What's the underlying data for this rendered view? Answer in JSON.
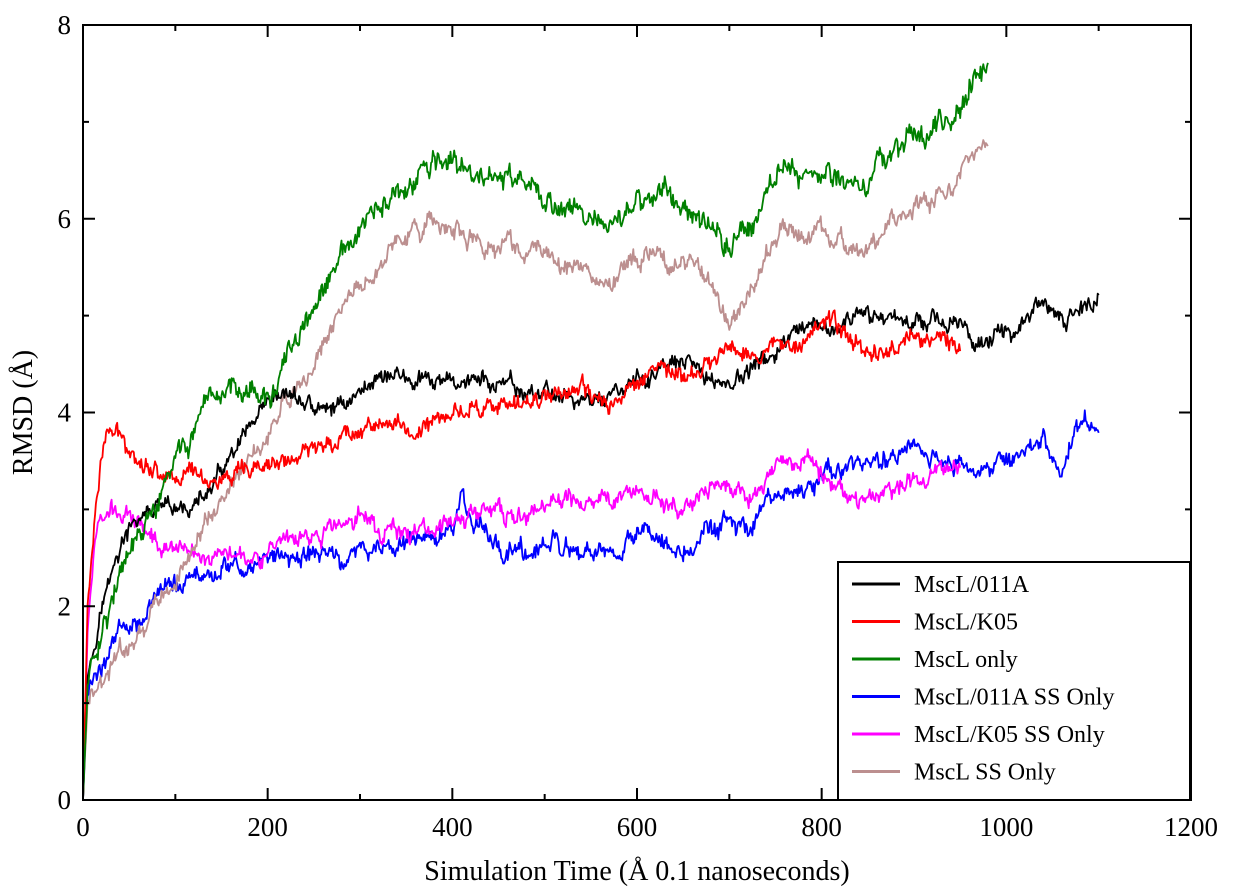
{
  "chart_data": {
    "type": "line",
    "title": "",
    "xlabel": "Simulation Time (Å 0.1 nanoseconds)",
    "ylabel": "RMSD (Å)",
    "xlim": [
      0,
      1200
    ],
    "ylim": [
      0,
      8
    ],
    "x_ticks": [
      0,
      200,
      400,
      600,
      800,
      1000,
      1200
    ],
    "y_ticks": [
      0,
      2,
      4,
      6,
      8
    ],
    "x_tick_labels": [
      "0",
      "200",
      "400",
      "600",
      "800",
      "1000",
      "1200"
    ],
    "y_tick_labels": [
      "0",
      "2",
      "4",
      "6",
      "8"
    ],
    "grid": false,
    "legend_position": "bottom-right",
    "series": [
      {
        "name": "MscL/011A",
        "color": "#000000",
        "noise": 0.11,
        "points": [
          [
            0,
            0
          ],
          [
            5,
            1.3
          ],
          [
            20,
            2.0
          ],
          [
            40,
            2.6
          ],
          [
            60,
            2.9
          ],
          [
            80,
            3.0
          ],
          [
            100,
            2.95
          ],
          [
            130,
            3.1
          ],
          [
            160,
            3.5
          ],
          [
            180,
            3.8
          ],
          [
            200,
            4.0
          ],
          [
            220,
            4.2
          ],
          [
            240,
            4.1
          ],
          [
            260,
            4.0
          ],
          [
            280,
            4.1
          ],
          [
            300,
            4.2
          ],
          [
            320,
            4.4
          ],
          [
            340,
            4.4
          ],
          [
            360,
            4.3
          ],
          [
            380,
            4.3
          ],
          [
            400,
            4.3
          ],
          [
            420,
            4.35
          ],
          [
            440,
            4.3
          ],
          [
            460,
            4.25
          ],
          [
            480,
            4.2
          ],
          [
            500,
            4.2
          ],
          [
            520,
            4.2
          ],
          [
            540,
            4.1
          ],
          [
            560,
            4.15
          ],
          [
            580,
            4.2
          ],
          [
            600,
            4.3
          ],
          [
            620,
            4.4
          ],
          [
            640,
            4.5
          ],
          [
            660,
            4.45
          ],
          [
            680,
            4.35
          ],
          [
            700,
            4.3
          ],
          [
            720,
            4.4
          ],
          [
            740,
            4.55
          ],
          [
            760,
            4.7
          ],
          [
            780,
            4.8
          ],
          [
            800,
            4.85
          ],
          [
            820,
            4.9
          ],
          [
            840,
            4.95
          ],
          [
            860,
            5.0
          ],
          [
            880,
            5.0
          ],
          [
            900,
            4.95
          ],
          [
            920,
            5.0
          ],
          [
            940,
            4.9
          ],
          [
            960,
            4.8
          ],
          [
            980,
            4.75
          ],
          [
            1000,
            4.8
          ],
          [
            1020,
            5.0
          ],
          [
            1040,
            5.1
          ],
          [
            1060,
            4.9
          ],
          [
            1080,
            5.1
          ],
          [
            1100,
            5.15
          ]
        ]
      },
      {
        "name": "MscL/K05",
        "color": "#ff0000",
        "noise": 0.11,
        "points": [
          [
            0,
            0
          ],
          [
            5,
            2.0
          ],
          [
            15,
            3.2
          ],
          [
            25,
            3.8
          ],
          [
            40,
            3.75
          ],
          [
            60,
            3.55
          ],
          [
            80,
            3.4
          ],
          [
            100,
            3.35
          ],
          [
            120,
            3.4
          ],
          [
            140,
            3.3
          ],
          [
            160,
            3.3
          ],
          [
            180,
            3.35
          ],
          [
            200,
            3.45
          ],
          [
            220,
            3.5
          ],
          [
            240,
            3.55
          ],
          [
            260,
            3.7
          ],
          [
            280,
            3.75
          ],
          [
            300,
            3.85
          ],
          [
            320,
            3.9
          ],
          [
            340,
            3.85
          ],
          [
            360,
            3.8
          ],
          [
            380,
            3.9
          ],
          [
            400,
            4.0
          ],
          [
            420,
            4.05
          ],
          [
            440,
            4.1
          ],
          [
            460,
            4.0
          ],
          [
            480,
            4.1
          ],
          [
            500,
            4.2
          ],
          [
            520,
            4.25
          ],
          [
            540,
            4.2
          ],
          [
            560,
            4.1
          ],
          [
            580,
            4.1
          ],
          [
            600,
            4.35
          ],
          [
            620,
            4.5
          ],
          [
            640,
            4.4
          ],
          [
            660,
            4.35
          ],
          [
            680,
            4.5
          ],
          [
            700,
            4.7
          ],
          [
            720,
            4.65
          ],
          [
            740,
            4.6
          ],
          [
            760,
            4.75
          ],
          [
            780,
            4.8
          ],
          [
            800,
            4.95
          ],
          [
            820,
            4.85
          ],
          [
            840,
            4.7
          ],
          [
            860,
            4.6
          ],
          [
            880,
            4.7
          ],
          [
            900,
            4.8
          ],
          [
            920,
            4.75
          ],
          [
            940,
            4.7
          ],
          [
            950,
            4.75
          ]
        ]
      },
      {
        "name": "MscL only",
        "color": "#008000",
        "noise": 0.14,
        "points": [
          [
            0,
            0
          ],
          [
            5,
            1.2
          ],
          [
            20,
            1.8
          ],
          [
            40,
            2.3
          ],
          [
            60,
            2.7
          ],
          [
            80,
            3.0
          ],
          [
            100,
            3.5
          ],
          [
            120,
            3.8
          ],
          [
            140,
            4.0
          ],
          [
            160,
            4.3
          ],
          [
            180,
            4.3
          ],
          [
            200,
            4.1
          ],
          [
            220,
            4.5
          ],
          [
            240,
            4.9
          ],
          [
            260,
            5.2
          ],
          [
            280,
            5.6
          ],
          [
            300,
            5.85
          ],
          [
            320,
            6.1
          ],
          [
            340,
            6.2
          ],
          [
            360,
            6.35
          ],
          [
            380,
            6.6
          ],
          [
            400,
            6.55
          ],
          [
            420,
            6.45
          ],
          [
            440,
            6.4
          ],
          [
            460,
            6.45
          ],
          [
            480,
            6.3
          ],
          [
            500,
            6.2
          ],
          [
            520,
            6.1
          ],
          [
            540,
            6.2
          ],
          [
            560,
            5.9
          ],
          [
            580,
            5.9
          ],
          [
            600,
            6.2
          ],
          [
            620,
            6.3
          ],
          [
            640,
            6.2
          ],
          [
            660,
            6.1
          ],
          [
            680,
            6.0
          ],
          [
            700,
            5.7
          ],
          [
            720,
            5.9
          ],
          [
            740,
            6.3
          ],
          [
            760,
            6.55
          ],
          [
            780,
            6.5
          ],
          [
            800,
            6.5
          ],
          [
            820,
            6.4
          ],
          [
            840,
            6.3
          ],
          [
            860,
            6.5
          ],
          [
            880,
            6.8
          ],
          [
            900,
            6.85
          ],
          [
            920,
            6.9
          ],
          [
            940,
            7.0
          ],
          [
            960,
            7.4
          ],
          [
            980,
            7.6
          ]
        ]
      },
      {
        "name": "MscL/011A SS Only",
        "color": "#0000ff",
        "noise": 0.12,
        "points": [
          [
            0,
            0
          ],
          [
            5,
            1.1
          ],
          [
            20,
            1.4
          ],
          [
            40,
            1.8
          ],
          [
            60,
            1.9
          ],
          [
            80,
            2.1
          ],
          [
            100,
            2.2
          ],
          [
            120,
            2.3
          ],
          [
            140,
            2.35
          ],
          [
            160,
            2.4
          ],
          [
            180,
            2.4
          ],
          [
            200,
            2.5
          ],
          [
            220,
            2.5
          ],
          [
            240,
            2.5
          ],
          [
            260,
            2.55
          ],
          [
            280,
            2.5
          ],
          [
            300,
            2.55
          ],
          [
            320,
            2.6
          ],
          [
            340,
            2.65
          ],
          [
            360,
            2.7
          ],
          [
            380,
            2.7
          ],
          [
            400,
            2.8
          ],
          [
            410,
            3.1
          ],
          [
            420,
            2.85
          ],
          [
            440,
            2.75
          ],
          [
            460,
            2.6
          ],
          [
            480,
            2.55
          ],
          [
            500,
            2.65
          ],
          [
            520,
            2.55
          ],
          [
            540,
            2.55
          ],
          [
            560,
            2.5
          ],
          [
            580,
            2.45
          ],
          [
            600,
            2.8
          ],
          [
            620,
            2.75
          ],
          [
            640,
            2.6
          ],
          [
            660,
            2.6
          ],
          [
            680,
            2.8
          ],
          [
            700,
            2.85
          ],
          [
            720,
            2.75
          ],
          [
            740,
            3.0
          ],
          [
            760,
            3.1
          ],
          [
            780,
            3.2
          ],
          [
            800,
            3.3
          ],
          [
            820,
            3.4
          ],
          [
            840,
            3.45
          ],
          [
            860,
            3.5
          ],
          [
            880,
            3.6
          ],
          [
            900,
            3.65
          ],
          [
            920,
            3.5
          ],
          [
            940,
            3.5
          ],
          [
            960,
            3.4
          ],
          [
            980,
            3.4
          ],
          [
            1000,
            3.5
          ],
          [
            1020,
            3.6
          ],
          [
            1040,
            3.7
          ],
          [
            1060,
            3.4
          ],
          [
            1080,
            3.9
          ],
          [
            1100,
            3.8
          ]
        ]
      },
      {
        "name": "MscL/K05 SS Only",
        "color": "#ff00ff",
        "noise": 0.11,
        "points": [
          [
            0,
            0
          ],
          [
            5,
            1.8
          ],
          [
            15,
            2.8
          ],
          [
            25,
            3.0
          ],
          [
            40,
            2.95
          ],
          [
            60,
            2.9
          ],
          [
            80,
            2.7
          ],
          [
            100,
            2.6
          ],
          [
            120,
            2.55
          ],
          [
            140,
            2.55
          ],
          [
            160,
            2.6
          ],
          [
            180,
            2.55
          ],
          [
            200,
            2.55
          ],
          [
            220,
            2.6
          ],
          [
            240,
            2.7
          ],
          [
            260,
            2.75
          ],
          [
            280,
            2.85
          ],
          [
            300,
            2.95
          ],
          [
            320,
            2.8
          ],
          [
            340,
            2.8
          ],
          [
            360,
            2.75
          ],
          [
            380,
            2.8
          ],
          [
            400,
            2.85
          ],
          [
            420,
            2.95
          ],
          [
            440,
            3.0
          ],
          [
            460,
            2.95
          ],
          [
            480,
            2.9
          ],
          [
            500,
            3.0
          ],
          [
            520,
            3.1
          ],
          [
            540,
            3.05
          ],
          [
            560,
            3.1
          ],
          [
            580,
            3.15
          ],
          [
            600,
            3.2
          ],
          [
            620,
            3.15
          ],
          [
            640,
            3.0
          ],
          [
            660,
            3.0
          ],
          [
            680,
            3.2
          ],
          [
            700,
            3.25
          ],
          [
            720,
            3.1
          ],
          [
            740,
            3.3
          ],
          [
            760,
            3.45
          ],
          [
            780,
            3.5
          ],
          [
            800,
            3.4
          ],
          [
            820,
            3.3
          ],
          [
            840,
            3.05
          ],
          [
            860,
            3.1
          ],
          [
            880,
            3.2
          ],
          [
            900,
            3.3
          ],
          [
            920,
            3.35
          ],
          [
            940,
            3.4
          ],
          [
            950,
            3.45
          ]
        ]
      },
      {
        "name": "MscL SS Only",
        "color": "#bc8f8f",
        "noise": 0.12,
        "points": [
          [
            0,
            0
          ],
          [
            5,
            1.0
          ],
          [
            20,
            1.2
          ],
          [
            40,
            1.5
          ],
          [
            60,
            1.7
          ],
          [
            80,
            2.0
          ],
          [
            100,
            2.3
          ],
          [
            120,
            2.6
          ],
          [
            140,
            2.9
          ],
          [
            160,
            3.3
          ],
          [
            180,
            3.5
          ],
          [
            200,
            3.7
          ],
          [
            220,
            4.1
          ],
          [
            240,
            4.3
          ],
          [
            260,
            4.7
          ],
          [
            280,
            5.1
          ],
          [
            300,
            5.3
          ],
          [
            320,
            5.5
          ],
          [
            340,
            5.75
          ],
          [
            360,
            5.85
          ],
          [
            380,
            6.0
          ],
          [
            400,
            5.9
          ],
          [
            420,
            5.8
          ],
          [
            440,
            5.7
          ],
          [
            460,
            5.75
          ],
          [
            480,
            5.6
          ],
          [
            500,
            5.7
          ],
          [
            520,
            5.5
          ],
          [
            540,
            5.45
          ],
          [
            560,
            5.3
          ],
          [
            580,
            5.4
          ],
          [
            600,
            5.6
          ],
          [
            620,
            5.6
          ],
          [
            640,
            5.5
          ],
          [
            660,
            5.5
          ],
          [
            680,
            5.3
          ],
          [
            700,
            4.9
          ],
          [
            720,
            5.3
          ],
          [
            740,
            5.6
          ],
          [
            760,
            5.9
          ],
          [
            780,
            5.85
          ],
          [
            800,
            5.8
          ],
          [
            820,
            5.8
          ],
          [
            840,
            5.6
          ],
          [
            860,
            5.8
          ],
          [
            880,
            6.0
          ],
          [
            900,
            6.1
          ],
          [
            920,
            6.15
          ],
          [
            940,
            6.3
          ],
          [
            960,
            6.6
          ],
          [
            980,
            6.8
          ]
        ]
      }
    ]
  }
}
